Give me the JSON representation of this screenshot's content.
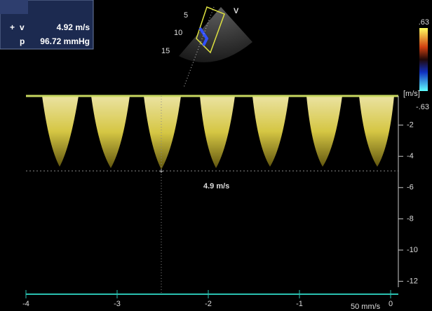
{
  "panel": {
    "v_label": "v",
    "v_value": "4.92 m/s",
    "p_label": "p",
    "p_value": "96.72 mmHg"
  },
  "probe": {
    "label": "V",
    "depths": [
      5,
      10,
      15
    ]
  },
  "color_bar": {
    "max": ".63",
    "min": "-.63"
  },
  "spectrum": {
    "unit": "[m/s]",
    "measurement": "4.9 m/s",
    "speed": "50 mm/s",
    "velocity_ticks": [
      -2,
      -4,
      -6,
      -8,
      -10,
      -12
    ],
    "time_ticks": [
      -4,
      -3,
      -2,
      -1,
      0
    ]
  }
}
